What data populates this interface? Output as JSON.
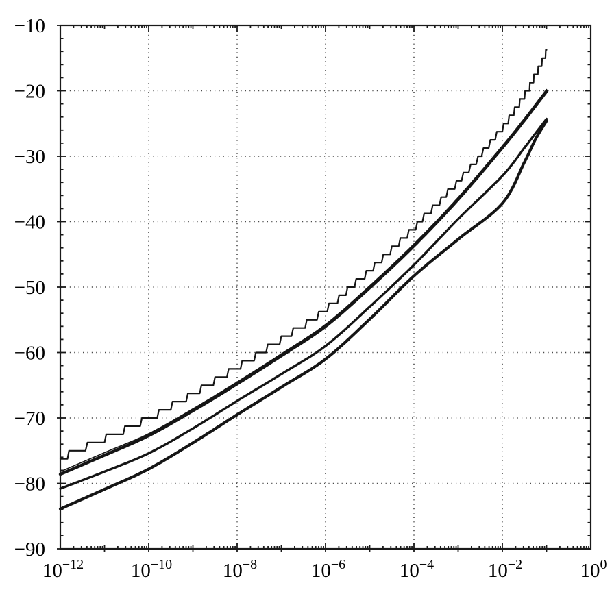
{
  "chart_data": {
    "type": "line",
    "title": "",
    "xlabel": "",
    "ylabel": "",
    "x_scale": "log10",
    "xlim": [
      -12,
      0
    ],
    "ylim": [
      -90,
      -10
    ],
    "grid": "dotted",
    "legend": "none",
    "y_major_ticks": [
      -10,
      -20,
      -30,
      -40,
      -50,
      -60,
      -70,
      -80,
      -90
    ],
    "y_tick_labels": [
      "−10",
      "−20",
      "−30",
      "−40",
      "−50",
      "−60",
      "−70",
      "−80",
      "−90"
    ],
    "y_minor_step": 2,
    "x_labeled_exponents": [
      -12,
      -10,
      -8,
      -6,
      -4,
      -2,
      0
    ],
    "x_all_decades": [
      -12,
      -11,
      -10,
      -9,
      -8,
      -7,
      -6,
      -5,
      -4,
      -3,
      -2,
      -1,
      0
    ],
    "grid_y_values": [
      -20,
      -30,
      -40,
      -50,
      -60,
      -70,
      -80
    ],
    "grid_x_exponents": [
      -10,
      -8,
      -6,
      -4,
      -2
    ],
    "axis_color": "#1a1a1a",
    "line_color": "#151515",
    "grid_color": "#4a4a4a",
    "x_sample_log10": [
      -12,
      -11,
      -10,
      -9,
      -8,
      -7,
      -6,
      -5,
      -4,
      -3,
      -2,
      -1.5,
      -1.25,
      -1
    ],
    "series": [
      {
        "name": "staircase-quantized-curve",
        "style": "step",
        "step_db": 1.25,
        "width": 2.2,
        "y": [
          -76.1,
          -73.2,
          -70.1,
          -66.3,
          -62.3,
          -58.0,
          -53.5,
          -47.4,
          -40.9,
          -33.9,
          -25.7,
          -20.7,
          -17.6,
          -14.1
        ]
      },
      {
        "name": "upper-thick-curve",
        "style": "smooth",
        "width": 4.4,
        "y": [
          -78.6,
          -75.7,
          -72.7,
          -68.9,
          -64.8,
          -60.5,
          -56.0,
          -50.1,
          -43.7,
          -36.6,
          -28.7,
          -24.5,
          -22.3,
          -20.1
        ]
      },
      {
        "name": "upper-thin-curve",
        "style": "smooth",
        "width": 1.6,
        "y": [
          -78.2,
          -75.3,
          -72.4,
          -68.6,
          -64.5,
          -60.2,
          -55.7,
          -49.8,
          -43.4,
          -36.3,
          -28.4,
          -24.2,
          -22.0,
          -19.8
        ]
      },
      {
        "name": "middle-curve",
        "style": "smooth",
        "width": 3.4,
        "y": [
          -80.8,
          -78.2,
          -75.4,
          -71.6,
          -67.4,
          -63.3,
          -59.0,
          -53.0,
          -46.6,
          -39.6,
          -33.0,
          -28.7,
          -26.5,
          -24.3
        ]
      },
      {
        "name": "lower-thick-curve",
        "style": "smooth",
        "width": 4.2,
        "y": [
          -83.9,
          -80.9,
          -77.8,
          -73.8,
          -69.5,
          -65.3,
          -61.0,
          -54.9,
          -48.3,
          -42.7,
          -37.2,
          -30.9,
          -27.4,
          -24.6
        ]
      }
    ]
  }
}
